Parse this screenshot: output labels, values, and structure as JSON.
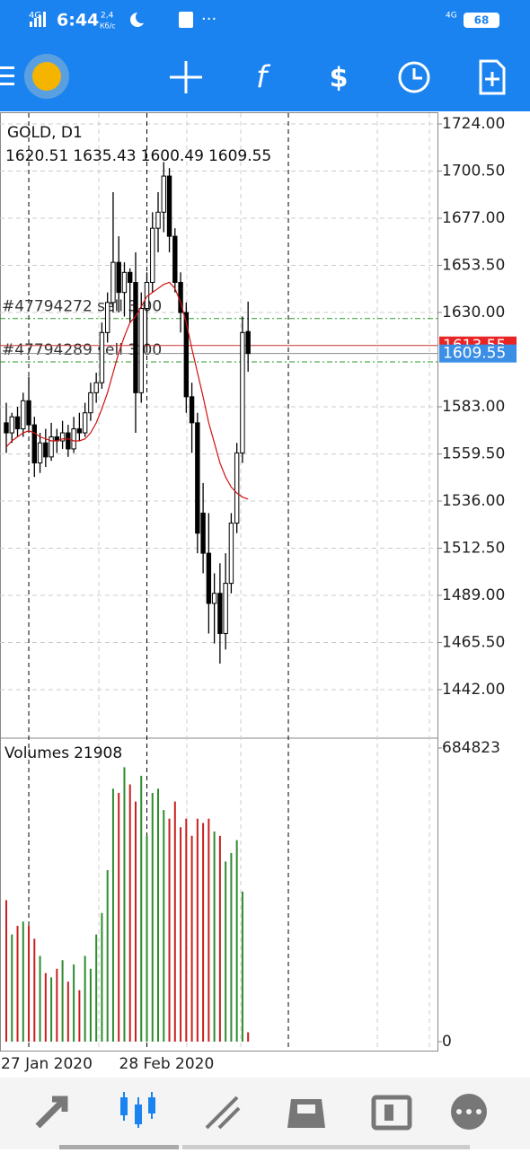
{
  "status_bar": {
    "network": "4G",
    "time": "6:44",
    "speed": "2,4",
    "speed_unit": "Кб/с",
    "network_right": "4G",
    "battery": "68"
  },
  "chart": {
    "symbol": "GOLD, D1",
    "ohlc": [
      1620.51,
      1635.43,
      1600.49,
      1609.55
    ],
    "yticks": [
      {
        "value": 1724,
        "label": "1724.00"
      },
      {
        "value": 1700.5,
        "label": "1700.50"
      },
      {
        "value": 1677,
        "label": "1677.00"
      },
      {
        "value": 1653.5,
        "label": "1653.50"
      },
      {
        "value": 1630,
        "label": "1630.00"
      },
      {
        "value": 1583,
        "label": "1583.00"
      },
      {
        "value": 1559.5,
        "label": "1559.50"
      },
      {
        "value": 1536,
        "label": "1536.00"
      },
      {
        "value": 1512.5,
        "label": "1512.50"
      },
      {
        "value": 1489,
        "label": "1489.00"
      },
      {
        "value": 1465.5,
        "label": "1465.50"
      },
      {
        "value": 1442,
        "label": "1442.00"
      }
    ],
    "dates": [
      null,
      null,
      null,
      null,
      "27 Jan 2020",
      null,
      null,
      null,
      null,
      null,
      null,
      null,
      null,
      null,
      null,
      null,
      null,
      null,
      null,
      null,
      null,
      null,
      null,
      null,
      null,
      "28 Feb 2020",
      null,
      null,
      null,
      null,
      null,
      null,
      null,
      null,
      null,
      null,
      null,
      null,
      null,
      null,
      null,
      null,
      null,
      null
    ],
    "open": [
      1575,
      1570,
      1578,
      1572,
      1586,
      1574,
      1555,
      1565,
      1558,
      1568,
      1566,
      1570,
      1562,
      1572,
      1570,
      1580,
      1590,
      1595,
      1620,
      1635,
      1655,
      1640,
      1650,
      1645,
      1590,
      1632,
      1645,
      1672,
      1680,
      1698,
      1668,
      1645,
      1630,
      1588,
      1575,
      1530,
      1510,
      1485,
      1490,
      1470,
      1495,
      1525,
      1560,
      1620.51
    ],
    "high": [
      1585,
      1580,
      1583,
      1590,
      1598,
      1578,
      1570,
      1572,
      1575,
      1572,
      1576,
      1574,
      1578,
      1580,
      1585,
      1595,
      1600,
      1625,
      1640,
      1690,
      1668,
      1655,
      1652,
      1660,
      1640,
      1650,
      1680,
      1690,
      1705,
      1702,
      1672,
      1650,
      1635,
      1595,
      1580,
      1545,
      1530,
      1500,
      1505,
      1510,
      1530,
      1565,
      1628,
      1635.43
    ],
    "low": [
      1560,
      1565,
      1568,
      1568,
      1570,
      1548,
      1550,
      1553,
      1556,
      1560,
      1562,
      1558,
      1560,
      1566,
      1568,
      1576,
      1585,
      1592,
      1615,
      1630,
      1630,
      1628,
      1625,
      1570,
      1585,
      1610,
      1640,
      1660,
      1670,
      1660,
      1640,
      1620,
      1580,
      1560,
      1510,
      1500,
      1470,
      1465,
      1455,
      1462,
      1490,
      1520,
      1555,
      1600.49
    ],
    "close": [
      1570,
      1578,
      1572,
      1586,
      1574,
      1555,
      1565,
      1558,
      1568,
      1566,
      1570,
      1562,
      1572,
      1570,
      1580,
      1590,
      1595,
      1620,
      1635,
      1655,
      1640,
      1650,
      1645,
      1590,
      1632,
      1645,
      1672,
      1680,
      1698,
      1668,
      1645,
      1630,
      1588,
      1575,
      1520,
      1510,
      1485,
      1490,
      1470,
      1495,
      1525,
      1560,
      1620,
      1609.55
    ],
    "ma": [
      1563,
      1566,
      1568,
      1570,
      1571,
      1570,
      1568,
      1567,
      1566,
      1566,
      1567,
      1567,
      1566,
      1566,
      1567,
      1570,
      1575,
      1582,
      1590,
      1600,
      1610,
      1618,
      1625,
      1628,
      1633,
      1638,
      1640,
      1642,
      1644,
      1645,
      1642,
      1635,
      1625,
      1612,
      1600,
      1588,
      1575,
      1565,
      1555,
      1548,
      1543,
      1540,
      1538,
      1537
    ],
    "orders": [
      {
        "label": "#47794272 sell 3.00",
        "price": 1627
      },
      {
        "label": "#47794289 sell 3.00",
        "price": 1605.4
      }
    ],
    "ask": 1613.55,
    "bid": 1609.55,
    "volumes_label": "Volumes",
    "volumes": [
      330000,
      250000,
      270000,
      280000,
      270000,
      240000,
      200000,
      160000,
      150000,
      170000,
      190000,
      140000,
      180000,
      120000,
      200000,
      170000,
      250000,
      300000,
      400000,
      590000,
      580000,
      640000,
      600000,
      560000,
      620000,
      480000,
      580000,
      590000,
      540000,
      520000,
      560000,
      500000,
      520000,
      480000,
      520000,
      510000,
      520000,
      490000,
      480000,
      420000,
      440000,
      470000,
      350000,
      21908
    ],
    "volume_ticks": [
      684823,
      0
    ]
  }
}
